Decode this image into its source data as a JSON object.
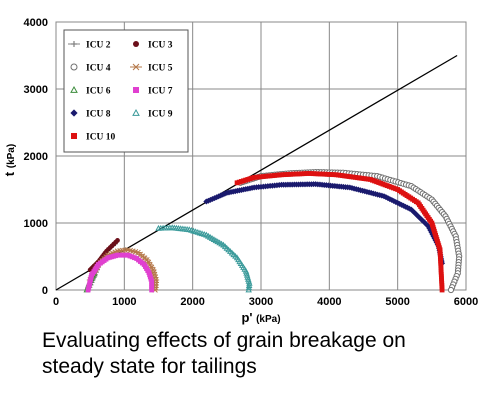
{
  "chart_data": {
    "type": "scatter",
    "xlabel": "p' (kPa)",
    "ylabel": "t (kPa)",
    "xlim": [
      0,
      6000
    ],
    "ylim": [
      0,
      4000
    ],
    "xticks": [
      0,
      1000,
      2000,
      3000,
      4000,
      5000,
      6000
    ],
    "yticks": [
      0,
      1000,
      2000,
      3000,
      4000
    ],
    "grid": true,
    "legend_position": "top-left",
    "reference_line": {
      "x": [
        0,
        5870
      ],
      "y": [
        0,
        3500
      ],
      "color": "#000000"
    },
    "series": [
      {
        "name": "ICU 2",
        "marker": "plus",
        "color": "#808080",
        "x": [
          480,
          560,
          640,
          720,
          800,
          870
        ],
        "y": [
          0,
          190,
          380,
          560,
          640,
          690
        ]
      },
      {
        "name": "ICU 3",
        "marker": "circle-filled",
        "color": "#6b0f1a",
        "x": [
          500,
          560,
          620,
          680,
          740,
          820,
          900
        ],
        "y": [
          300,
          360,
          420,
          500,
          580,
          660,
          740
        ]
      },
      {
        "name": "ICU 4",
        "marker": "circle-open",
        "color": "#707070",
        "x": [
          2700,
          3000,
          3400,
          3800,
          4200,
          4700,
          5200,
          5500,
          5700,
          5850,
          5900,
          5880,
          5780
        ],
        "y": [
          1600,
          1700,
          1740,
          1760,
          1750,
          1700,
          1550,
          1350,
          1100,
          800,
          500,
          250,
          0
        ]
      },
      {
        "name": "ICU 5",
        "marker": "cross-line",
        "color": "#b5784a",
        "x": [
          500,
          620,
          760,
          900,
          1050,
          1200,
          1330,
          1420,
          1460,
          1450
        ],
        "y": [
          150,
          380,
          520,
          580,
          600,
          560,
          450,
          300,
          150,
          0
        ]
      },
      {
        "name": "ICU 6",
        "marker": "triangle-open",
        "color": "#3c8c3c",
        "x": [
          450,
          480,
          520,
          560
        ],
        "y": [
          0,
          90,
          170,
          240
        ]
      },
      {
        "name": "ICU 7",
        "marker": "square-filled",
        "color": "#e040d0",
        "x": [
          470,
          520,
          620,
          760,
          900,
          1050,
          1180,
          1290,
          1360,
          1400,
          1400
        ],
        "y": [
          0,
          220,
          380,
          480,
          520,
          520,
          470,
          380,
          260,
          130,
          0
        ]
      },
      {
        "name": "ICU 8",
        "marker": "diamond-filled",
        "color": "#1a1a6e",
        "x": [
          2200,
          2500,
          2900,
          3300,
          3800,
          4300,
          4800,
          5200,
          5450,
          5600,
          5650
        ],
        "y": [
          1320,
          1450,
          1530,
          1570,
          1580,
          1530,
          1400,
          1200,
          950,
          650,
          400
        ]
      },
      {
        "name": "ICU 9",
        "marker": "triangle-open",
        "color": "#3a9a9a",
        "x": [
          1500,
          1700,
          1950,
          2200,
          2450,
          2650,
          2780,
          2830,
          2820
        ],
        "y": [
          920,
          930,
          900,
          820,
          670,
          480,
          280,
          100,
          0
        ]
      },
      {
        "name": "ICU 10",
        "marker": "square-filled",
        "color": "#dd1111",
        "x": [
          2650,
          2900,
          3300,
          3700,
          4100,
          4600,
          5000,
          5300,
          5500,
          5620,
          5650
        ],
        "y": [
          1600,
          1680,
          1720,
          1740,
          1720,
          1650,
          1500,
          1300,
          1000,
          600,
          0
        ]
      }
    ]
  },
  "caption": {
    "line1": "Evaluating effects of grain breakage on",
    "line2": "steady state for tailings"
  }
}
